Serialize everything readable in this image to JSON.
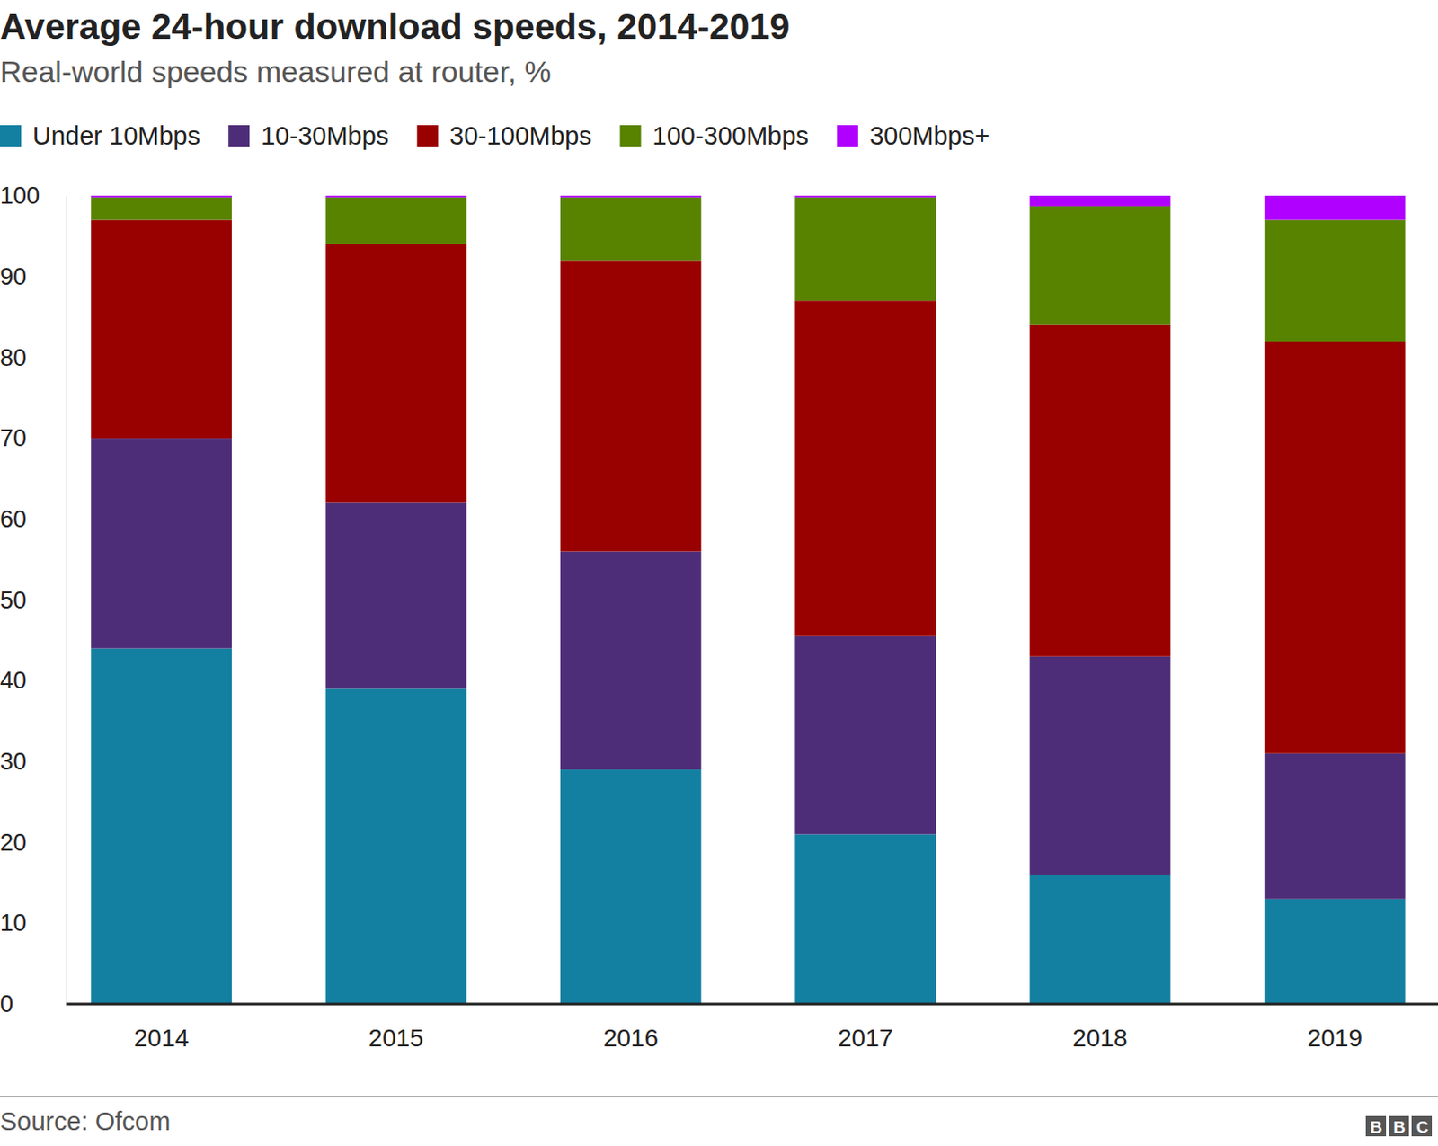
{
  "chart_data": {
    "type": "bar",
    "stacked": true,
    "grid": false,
    "title": "Average 24-hour download speeds, 2014-2019",
    "subtitle": "Real-world speeds measured at router, %",
    "source": "Source: Ofcom",
    "logo": "BBC",
    "categories": [
      "2014",
      "2015",
      "2016",
      "2017",
      "2018",
      "2019"
    ],
    "series": [
      {
        "name": "Under 10Mbps",
        "color": "#1380a1",
        "values": [
          44,
          39,
          29,
          21,
          16,
          13
        ]
      },
      {
        "name": "10-30Mbps",
        "color": "#4e2d78",
        "values": [
          26,
          23,
          27,
          24.5,
          27,
          18
        ]
      },
      {
        "name": "30-100Mbps",
        "color": "#990000",
        "values": [
          27,
          32,
          36,
          41.5,
          41,
          51
        ]
      },
      {
        "name": "100-300Mbps",
        "color": "#588300",
        "values": [
          2.8,
          5.8,
          7.8,
          12.8,
          14.7,
          15
        ]
      },
      {
        "name": "300Mbps+",
        "color": "#b000ff",
        "values": [
          0.2,
          0.2,
          0.2,
          0.2,
          1.3,
          3
        ]
      }
    ],
    "ylim": [
      0,
      100
    ],
    "yticks": [
      0,
      10,
      20,
      30,
      40,
      50,
      60,
      70,
      80,
      90,
      100
    ]
  }
}
